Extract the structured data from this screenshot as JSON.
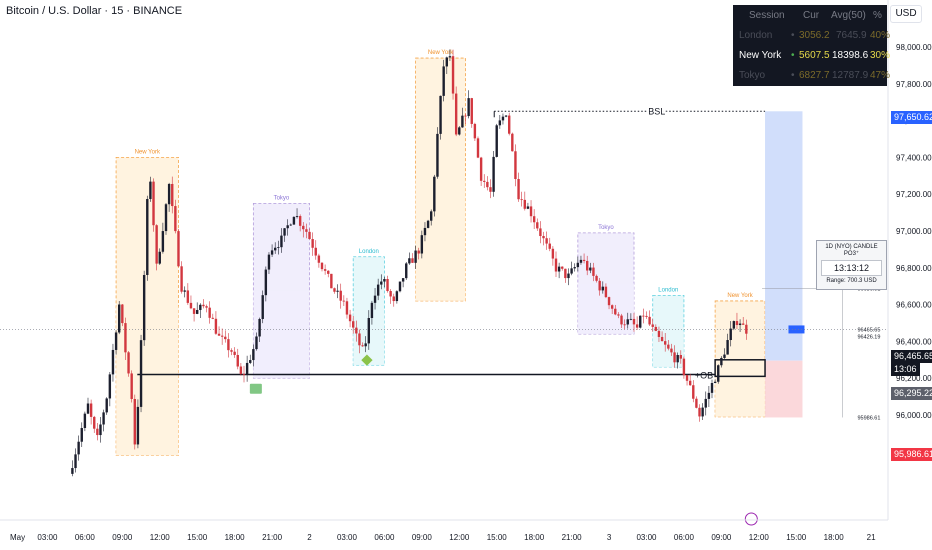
{
  "header": {
    "title": "Bitcoin / U.S. Dollar · 15 · BINANCE",
    "currency": "USD"
  },
  "session_table": {
    "headers": [
      "Session",
      "Cur",
      "Avg(50)",
      "%"
    ],
    "rows": [
      {
        "name": "London",
        "dot": "•",
        "cur": "3056.2",
        "avg": "7645.9",
        "pct": "40%",
        "active": false
      },
      {
        "name": "New York",
        "dot": "•",
        "cur": "5607.5",
        "avg": "18398.6",
        "pct": "30%",
        "active": true
      },
      {
        "name": "Tokyo",
        "dot": "•",
        "cur": "6827.7",
        "avg": "12787.9",
        "pct": "47%",
        "active": false
      }
    ]
  },
  "info_box": {
    "title": "1D (NYO) CANDLE PO3⁺",
    "clock": "13:13:12",
    "range": "Range: 700.3 USD"
  },
  "price_tags": {
    "top": "97,650.62",
    "last": "96,465.65",
    "countdown": "13:06",
    "mid": "96,295.22",
    "low": "95,986.61"
  },
  "colors": {
    "up": "#1c1f2e",
    "down": "#d2373f",
    "accent_blue": "#2962ff",
    "red_tag": "#f23645"
  },
  "chart_data": {
    "type": "candlestick",
    "symbol": "Bitcoin / U.S. Dollar",
    "interval": "15",
    "exchange": "BINANCE",
    "ylim": [
      95650,
      98150
    ],
    "y_ticks": [
      95800,
      96000,
      96200,
      96400,
      96600,
      96800,
      97000,
      97200,
      97400,
      97600,
      97800,
      98000
    ],
    "y_tick_labels": [
      "95,800.00",
      "96,000.00",
      "96,200.00",
      "96,400.00",
      "96,600.00",
      "96,800.00",
      "97,000.00",
      "97,200.00",
      "97,400.00",
      "97,600.00",
      "97,800.00",
      "98,000.00"
    ],
    "x_tick_labels": [
      "May",
      "03:00",
      "06:00",
      "09:00",
      "12:00",
      "15:00",
      "18:00",
      "21:00",
      "2",
      "03:00",
      "06:00",
      "09:00",
      "12:00",
      "15:00",
      "18:00",
      "21:00",
      "3",
      "03:00",
      "06:00",
      "09:00",
      "12:00",
      "15:00",
      "18:00",
      "21"
    ],
    "x_hours": [
      0,
      3,
      6,
      9,
      12,
      15,
      18,
      21,
      24,
      27,
      30,
      33,
      36,
      39,
      42,
      45,
      48,
      51,
      54,
      57,
      60,
      63,
      66,
      69
    ],
    "last_hour": 59.1,
    "waypoints": [
      [
        5,
        95680
      ],
      [
        6.5,
        96050
      ],
      [
        7.2,
        95850
      ],
      [
        8,
        96100
      ],
      [
        9,
        96600
      ],
      [
        10,
        96100
      ],
      [
        10.3,
        95800
      ],
      [
        10.8,
        96450
      ],
      [
        11.4,
        97380
      ],
      [
        12,
        96800
      ],
      [
        13,
        97250
      ],
      [
        14,
        96700
      ],
      [
        15,
        96550
      ],
      [
        16,
        96600
      ],
      [
        17,
        96420
      ],
      [
        18,
        96350
      ],
      [
        18.8,
        96200
      ],
      [
        20,
        96400
      ],
      [
        21,
        96900
      ],
      [
        22,
        96950
      ],
      [
        23,
        97100
      ],
      [
        24,
        97000
      ],
      [
        25,
        96850
      ],
      [
        26,
        96700
      ],
      [
        27,
        96600
      ],
      [
        28,
        96420
      ],
      [
        28.6,
        96330
      ],
      [
        29.3,
        96650
      ],
      [
        30.1,
        96740
      ],
      [
        31,
        96600
      ],
      [
        32,
        96800
      ],
      [
        33,
        96900
      ],
      [
        34,
        97100
      ],
      [
        34.5,
        97520
      ],
      [
        35,
        97900
      ],
      [
        35.5,
        97950
      ],
      [
        36,
        97500
      ],
      [
        37,
        97700
      ],
      [
        38,
        97300
      ],
      [
        38.8,
        97200
      ],
      [
        39.2,
        97550
      ],
      [
        40,
        97650
      ],
      [
        41,
        97200
      ],
      [
        42,
        97100
      ],
      [
        43,
        96950
      ],
      [
        44,
        96800
      ],
      [
        45,
        96750
      ],
      [
        46,
        96850
      ],
      [
        47,
        96750
      ],
      [
        48,
        96650
      ],
      [
        49,
        96520
      ],
      [
        50,
        96500
      ],
      [
        50.5,
        96470
      ],
      [
        51,
        96550
      ],
      [
        52,
        96430
      ],
      [
        53,
        96350
      ],
      [
        54,
        96280
      ],
      [
        55,
        96100
      ],
      [
        55.5,
        96000
      ],
      [
        56,
        96080
      ],
      [
        57,
        96250
      ],
      [
        58,
        96450
      ],
      [
        58.6,
        96530
      ],
      [
        59.1,
        96465
      ]
    ],
    "sessions": [
      {
        "name": "New York",
        "start": 8.5,
        "end": 13.5,
        "high": 97400,
        "low": 95780
      },
      {
        "name": "Tokyo",
        "start": 19.5,
        "end": 24.0,
        "high": 97150,
        "low": 96200
      },
      {
        "name": "London",
        "start": 27.5,
        "end": 30.0,
        "high": 96860,
        "low": 96270
      },
      {
        "name": "New York",
        "start": 32.5,
        "end": 36.5,
        "high": 97940,
        "low": 96620
      },
      {
        "name": "Tokyo",
        "start": 45.5,
        "end": 50.0,
        "high": 96990,
        "low": 96440
      },
      {
        "name": "London",
        "start": 51.5,
        "end": 54.0,
        "high": 96650,
        "low": 96260
      },
      {
        "name": "New York",
        "start": 56.5,
        "end": 60.5,
        "high": 96620,
        "low": 95990
      }
    ],
    "annotations": {
      "bsl": {
        "label": "BSL",
        "price": 97650.62,
        "start": 38.8,
        "end": 60.5
      },
      "ob": {
        "label": "+OB",
        "high": 96300,
        "low": 96210,
        "start": 56.5,
        "end": 60.5
      },
      "ob_line": {
        "price": 96220,
        "start": 10.2,
        "end": 56.5
      },
      "levels": [
        {
          "label": "96686.91",
          "price": 96686.91
        },
        {
          "label": "96465.65",
          "price": 96465.65
        },
        {
          "label": "96426.19",
          "price": 96426.19
        },
        {
          "label": "95986.61",
          "price": 95986.61
        }
      ],
      "position": {
        "entry": 96295.22,
        "target": 97650.62,
        "stop": 95986.61,
        "start": 60.5,
        "end": 63.5
      }
    }
  }
}
